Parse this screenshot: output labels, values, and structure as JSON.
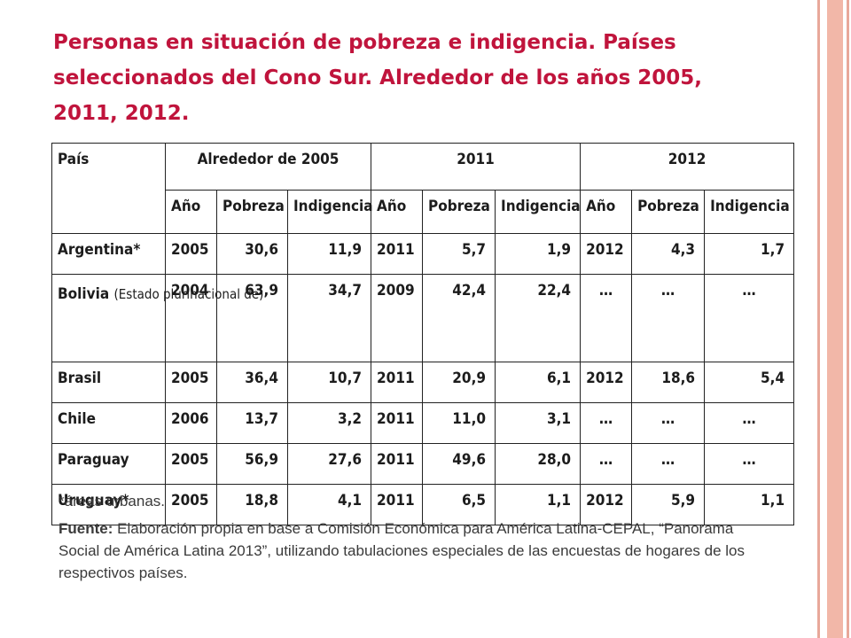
{
  "title": "Personas en situación de pobreza e indigencia. Países seleccionados del Cono Sur. Alrededor de los años 2005, 2011, 2012.",
  "table": {
    "country_header": "País",
    "groups": [
      "Alrededor de 2005",
      "2011",
      "2012"
    ],
    "subheaders": [
      "Año",
      "Pobreza",
      "Indigencia",
      "Año",
      "Pobreza",
      "Indigencia",
      "Año",
      "Pobreza",
      "Indigencia"
    ],
    "rows": [
      {
        "country": "Argentina*",
        "note": "",
        "cells": [
          "2005",
          "30,6",
          "11,9",
          "2011",
          "5,7",
          "1,9",
          "2012",
          "4,3",
          "1,7"
        ]
      },
      {
        "country": "Bolivia",
        "note": "(Estado plurinacional de)",
        "cells": [
          "2004",
          "63,9",
          "34,7",
          "2009",
          "42,4",
          "22,4",
          "…",
          "…",
          "…"
        ]
      },
      {
        "country": "Brasil",
        "note": "",
        "cells": [
          "2005",
          "36,4",
          "10,7",
          "2011",
          "20,9",
          "6,1",
          "2012",
          "18,6",
          "5,4"
        ]
      },
      {
        "country": "Chile",
        "note": "",
        "cells": [
          "2006",
          "13,7",
          "3,2",
          "2011",
          "11,0",
          "3,1",
          "…",
          "…",
          "…"
        ]
      },
      {
        "country": "Paraguay",
        "note": "",
        "cells": [
          "2005",
          "56,9",
          "27,6",
          "2011",
          "49,6",
          "28,0",
          "…",
          "…",
          "…"
        ]
      },
      {
        "country": "Uruguay*",
        "note": "",
        "cells": [
          "2005",
          "18,8",
          "4,1",
          "2011",
          "6,5",
          "1,1",
          "2012",
          "5,9",
          "1,1"
        ]
      }
    ]
  },
  "footnote": "*áreas urbanas.",
  "source": {
    "label": "Fuente:",
    "text": "Elaboración propia en base a Comisión Económica para América Latina-CEPAL, “Panorama Social de América Latina 2013”, utilizando tabulaciones especiales de las encuestas de hogares de los respectivos países."
  },
  "colors": {
    "title": "#c0143c",
    "border_accent": "#f2b7a8"
  }
}
